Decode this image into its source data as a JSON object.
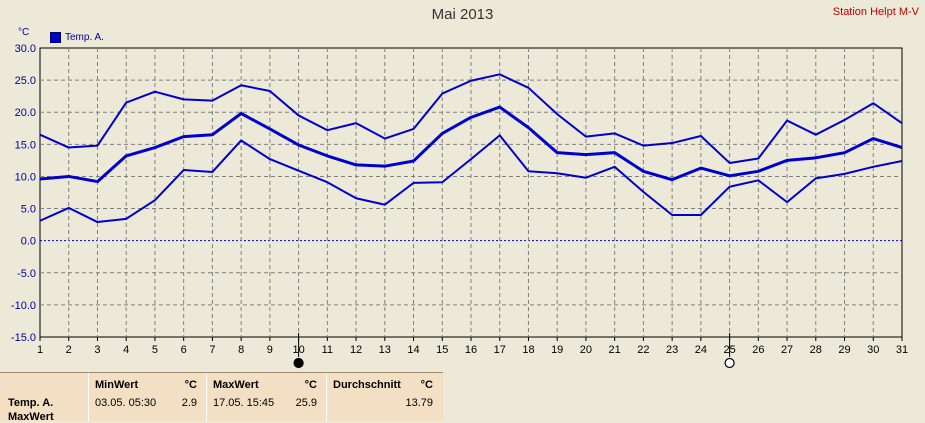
{
  "chart": {
    "title": "Mai 2013",
    "station": "Station Helpt M-V",
    "unit": "°C",
    "legend_label": "Temp. A."
  },
  "stats": {
    "row_label": "Temp. A.",
    "row_label2": "MaxWert",
    "min": {
      "header": "MinWert",
      "unit": "°C",
      "date": "03.05.  05:30",
      "value": "2.9"
    },
    "max": {
      "header": "MaxWert",
      "unit": "°C",
      "date": "17.05.  15:45",
      "value": "25.9"
    },
    "avg": {
      "header": "Durchschnitt",
      "unit": "°C",
      "value": "13.79"
    }
  },
  "colors": {
    "series": "#0000cc",
    "grid": "#808080",
    "zero_line": "#0000cc"
  },
  "chart_data": {
    "type": "line",
    "title": "Mai 2013",
    "ylabel": "°C",
    "ylim": [
      -15,
      30
    ],
    "yticks": [
      "30.0",
      "25.0",
      "20.0",
      "15.0",
      "10.0",
      "5.0",
      "0.0",
      "-5.0",
      "-10.0",
      "-15.0"
    ],
    "x": [
      1,
      2,
      3,
      4,
      5,
      6,
      7,
      8,
      9,
      10,
      11,
      12,
      13,
      14,
      15,
      16,
      17,
      18,
      19,
      20,
      21,
      22,
      23,
      24,
      25,
      26,
      27,
      28,
      29,
      30,
      31
    ],
    "grid": true,
    "legend": "top-left",
    "moon_markers": [
      {
        "day": 10,
        "phase": "new"
      },
      {
        "day": 25,
        "phase": "full"
      }
    ],
    "series": [
      {
        "name": "Temp. A.",
        "role": "max",
        "values": [
          16.5,
          14.5,
          14.8,
          21.5,
          23.2,
          22.0,
          21.8,
          24.2,
          23.3,
          19.5,
          17.2,
          18.3,
          15.9,
          17.4,
          22.9,
          24.9,
          25.9,
          23.8,
          19.7,
          16.2,
          16.7,
          14.8,
          15.2,
          16.3,
          12.1,
          12.8,
          18.7,
          16.5,
          18.8,
          21.4,
          18.3
        ]
      },
      {
        "name": "Temp. A.",
        "role": "avg",
        "values": [
          9.6,
          10.0,
          9.2,
          13.2,
          14.5,
          16.2,
          16.5,
          19.8,
          17.4,
          14.9,
          13.2,
          11.8,
          11.6,
          12.4,
          16.7,
          19.2,
          20.8,
          17.6,
          13.7,
          13.4,
          13.7,
          10.8,
          9.5,
          11.3,
          10.1,
          10.8,
          12.5,
          12.9,
          13.7,
          15.9,
          14.5
        ]
      },
      {
        "name": "Temp. A.",
        "role": "min",
        "values": [
          3.1,
          5.1,
          2.9,
          3.4,
          6.3,
          11.0,
          10.7,
          15.6,
          12.7,
          10.9,
          9.1,
          6.6,
          5.6,
          9.0,
          9.1,
          12.7,
          16.4,
          10.8,
          10.5,
          9.8,
          11.5,
          7.6,
          4.0,
          4.0,
          8.4,
          9.4,
          6.0,
          9.7,
          10.4,
          11.5,
          12.4
        ]
      }
    ]
  }
}
